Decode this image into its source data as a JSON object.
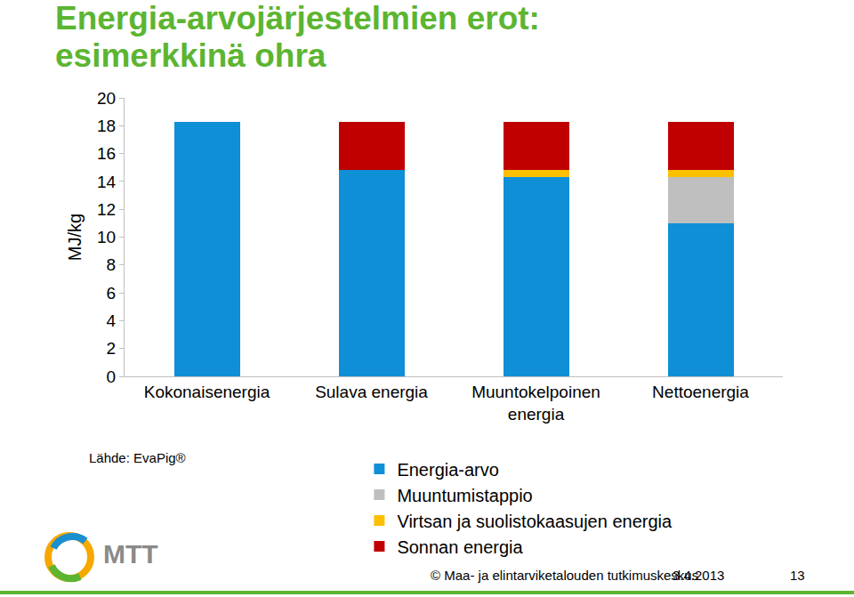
{
  "chart_data": {
    "type": "bar",
    "title": "Energia-arvojärjestelmien erot: esimerkkinä ohra",
    "y_label": "MJ/kg",
    "categories": [
      "Kokonaisenergia",
      "Sulava energia",
      "Muuntokelpoinen energia",
      "Nettoenergia"
    ],
    "series": [
      {
        "name": "Energia-arvo",
        "color": "#0f8fd6",
        "values": [
          18.3,
          14.8,
          14.3,
          11.0
        ]
      },
      {
        "name": "Muuntumistappio",
        "color": "#bfbfbf",
        "values": [
          null,
          null,
          null,
          3.3
        ]
      },
      {
        "name": "Virtsan ja suolistokaasujen energia",
        "color": "#fcc000",
        "values": [
          null,
          null,
          0.5,
          0.5
        ]
      },
      {
        "name": "Sonnan energia",
        "color": "#c00000",
        "values": [
          null,
          3.5,
          3.5,
          3.5
        ]
      }
    ],
    "stacked": true,
    "ylim": [
      0,
      20
    ],
    "yticks": [
      0,
      2,
      4,
      6,
      8,
      10,
      12,
      14,
      16,
      18,
      20
    ],
    "grid": false,
    "legend": "bottom",
    "annotations": [
      "Lähde: EvaPig®",
      "MTT",
      "© Maa- ja elintarviketalouden tutkimuskeskus",
      "3.4.2013",
      "13"
    ]
  }
}
